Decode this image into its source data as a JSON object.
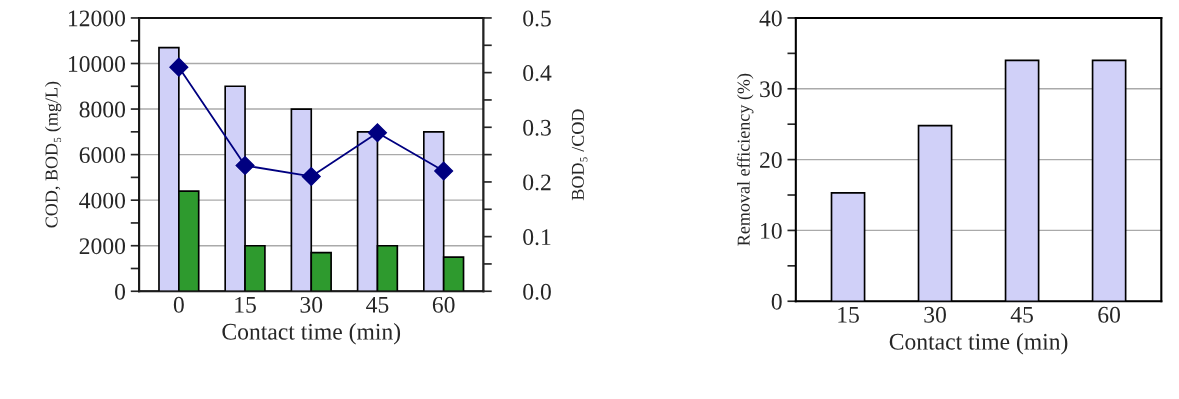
{
  "chart_data": [
    {
      "type": "bar",
      "xlabel": "Contact time (min)",
      "ylabel": "COD, BOD₅ (mg/L)",
      "y2label": "BOD₅ /COD",
      "categories": [
        "0",
        "15",
        "30",
        "45",
        "60"
      ],
      "series": [
        {
          "color": "#d0d0f8",
          "values": [
            10700,
            9000,
            8000,
            7000,
            7000
          ]
        },
        {
          "color": "#2e9a2e",
          "values": [
            4400,
            2000,
            1700,
            2000,
            1500
          ]
        },
        {
          "type": "line",
          "axis": "y2",
          "color": "#000080",
          "marker": "diamond",
          "values": [
            0.41,
            0.23,
            0.21,
            0.29,
            0.22
          ]
        }
      ],
      "ylim": [
        0,
        12000
      ],
      "yticks": [
        0,
        {
          "value": 1000,
          "label": null
        },
        2000,
        {
          "value": 3000,
          "label": null
        },
        4000,
        {
          "value": 5000,
          "label": null
        },
        6000,
        {
          "value": 7000,
          "label": null
        },
        8000,
        {
          "value": 9000,
          "label": null
        },
        10000,
        {
          "value": 11000,
          "label": null
        },
        12000
      ],
      "y2lim": [
        0,
        0.5
      ],
      "y2ticks": [
        {
          "value": 0,
          "label": "0.0"
        },
        {
          "value": 0.05,
          "label": null
        },
        0.1,
        {
          "value": 0.15,
          "label": null
        },
        0.2,
        {
          "value": 0.25,
          "label": null
        },
        0.3,
        {
          "value": 0.35,
          "label": null
        },
        0.4,
        {
          "value": 0.45,
          "label": null
        },
        0.5
      ],
      "grid": "y",
      "legend": false
    },
    {
      "type": "bar",
      "xlabel": "Contact time (min)",
      "ylabel": "Removal efficiency (%)",
      "categories": [
        "15",
        "30",
        "45",
        "60"
      ],
      "series": [
        {
          "color": "#d0d0f8",
          "values": [
            15.3,
            24.8,
            34,
            34
          ]
        }
      ],
      "ylim": [
        0,
        40
      ],
      "yticks": [
        0,
        {
          "value": 5,
          "label": null
        },
        10,
        {
          "value": 15,
          "label": null
        },
        20,
        {
          "value": 25,
          "label": null
        },
        30,
        {
          "value": 35,
          "label": null
        },
        40
      ],
      "grid": "y",
      "legend": false
    }
  ]
}
